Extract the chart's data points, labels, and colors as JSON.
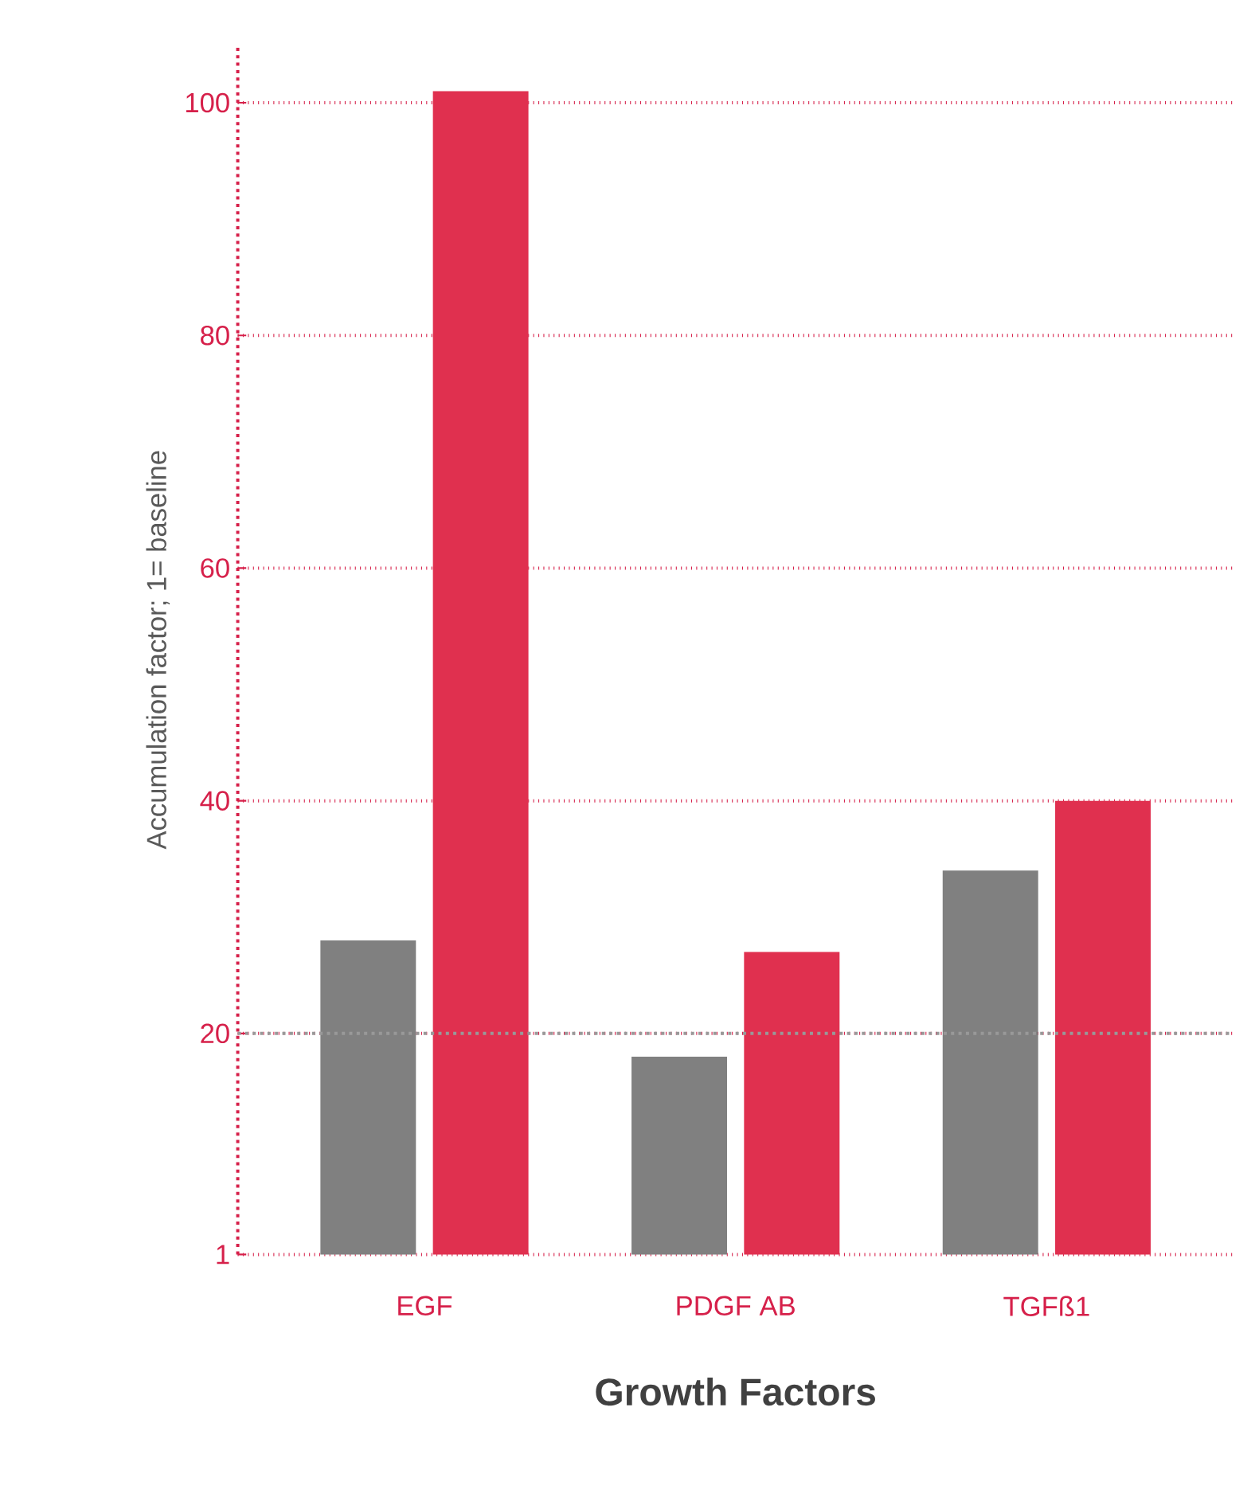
{
  "chart_data": {
    "type": "bar",
    "xlabel": "**Growth Factors**",
    "ylabel": "Accumulation factor; 1= baseline",
    "categories": [
      "EGF",
      "PDGF AB",
      "TGFß1"
    ],
    "series": [
      {
        "color": "#808080",
        "values": [
          28,
          18,
          34
        ]
      },
      {
        "color": "#e0304f",
        "values": [
          101,
          27,
          40
        ]
      }
    ],
    "ylim": [
      1,
      105
    ],
    "yticks": [
      1,
      20,
      40,
      60,
      80,
      100
    ],
    "grid": "y",
    "ref_lines": [
      {
        "axis": "y",
        "value": 20,
        "color": "#999999",
        "line_style": "dotted"
      }
    ]
  }
}
